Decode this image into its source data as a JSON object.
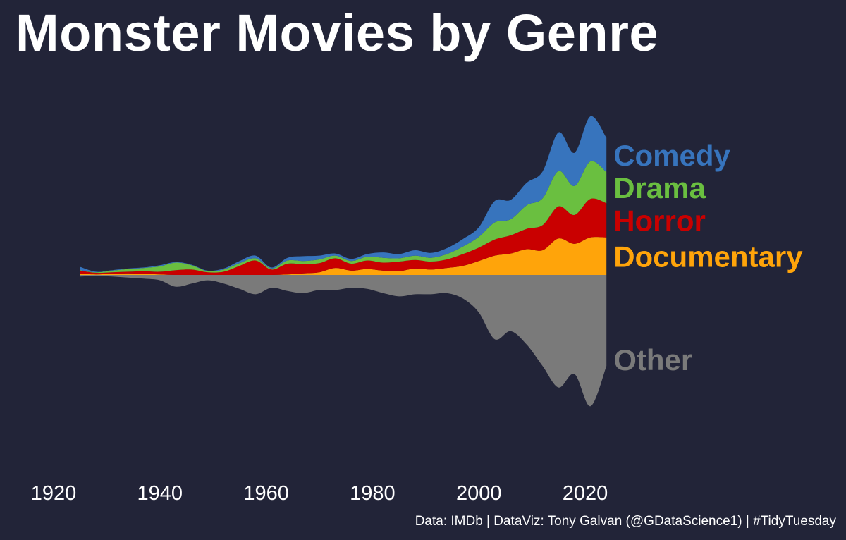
{
  "title": "Monster Movies by Genre",
  "caption": "Data: IMDb  |  DataViz: Tony Galvan (@GDataScience1)  |  #TidyTuesday",
  "chart_data": {
    "type": "area",
    "subtype": "streamgraph",
    "title": "Monster Movies by Genre",
    "xlabel": "",
    "ylabel": "",
    "xlim": [
      1920,
      2024
    ],
    "ylim": [
      -34,
      34
    ],
    "grid": false,
    "legend": "direct labels at right end of streams",
    "x_ticks": [
      1920,
      1940,
      1960,
      1980,
      2000,
      2020
    ],
    "x": [
      1925,
      1928,
      1931,
      1934,
      1937,
      1940,
      1943,
      1946,
      1949,
      1952,
      1955,
      1958,
      1961,
      1964,
      1967,
      1970,
      1973,
      1976,
      1979,
      1982,
      1985,
      1988,
      1991,
      1994,
      1997,
      2000,
      2003,
      2006,
      2009,
      2012,
      2015,
      2018,
      2021,
      2024
    ],
    "series": [
      {
        "name": "Other",
        "color": "#7a7a7a",
        "values": [
          0.3,
          0.2,
          0.3,
          0.5,
          0.7,
          1.0,
          2.2,
          1.6,
          1.0,
          1.6,
          2.6,
          3.6,
          2.4,
          3.0,
          3.4,
          2.8,
          2.8,
          2.4,
          2.6,
          3.4,
          4.0,
          3.6,
          3.6,
          3.4,
          4.4,
          7.0,
          12.0,
          10.5,
          13.0,
          17.0,
          21.0,
          18.5,
          24.5,
          17.0
        ]
      },
      {
        "name": "Documentary",
        "color": "#ffa40a",
        "values": [
          0.2,
          0.1,
          0.2,
          0.3,
          0.2,
          0.1,
          0.0,
          0.0,
          0.0,
          0.0,
          0.0,
          0.0,
          0.0,
          0.1,
          0.3,
          0.5,
          1.3,
          0.8,
          1.1,
          0.8,
          0.7,
          1.2,
          1.0,
          1.3,
          1.7,
          2.6,
          3.6,
          4.0,
          4.8,
          4.6,
          6.8,
          5.8,
          7.0,
          7.0
        ]
      },
      {
        "name": "Horror",
        "color": "#c90000",
        "values": [
          0.6,
          0.3,
          0.3,
          0.3,
          0.5,
          0.5,
          0.9,
          1.0,
          0.5,
          0.6,
          1.7,
          2.7,
          1.0,
          2.0,
          1.7,
          1.7,
          1.8,
          1.3,
          1.6,
          1.5,
          1.8,
          1.6,
          1.5,
          1.6,
          2.2,
          2.5,
          3.0,
          3.4,
          3.8,
          4.7,
          6.0,
          5.4,
          7.2,
          6.4
        ]
      },
      {
        "name": "Drama",
        "color": "#6abf40",
        "values": [
          0.1,
          0.1,
          0.3,
          0.5,
          0.6,
          1.0,
          1.4,
          0.8,
          0.2,
          0.4,
          0.5,
          0.4,
          0.2,
          0.6,
          0.6,
          0.7,
          0.5,
          0.5,
          0.7,
          0.9,
          0.6,
          0.8,
          0.7,
          1.0,
          1.4,
          2.0,
          3.2,
          3.0,
          4.4,
          5.0,
          6.6,
          5.4,
          7.0,
          5.8
        ]
      },
      {
        "name": "Comedy",
        "color": "#3774bd",
        "values": [
          0.6,
          0.1,
          0.1,
          0.1,
          0.1,
          0.2,
          0.1,
          0.1,
          0.1,
          0.2,
          0.4,
          0.5,
          0.2,
          0.5,
          0.9,
          0.7,
          0.4,
          0.4,
          0.5,
          1.0,
          0.8,
          1.0,
          0.9,
          1.1,
          1.4,
          1.8,
          4.0,
          3.6,
          4.2,
          5.0,
          7.2,
          6.2,
          8.4,
          6.4
        ]
      }
    ]
  }
}
